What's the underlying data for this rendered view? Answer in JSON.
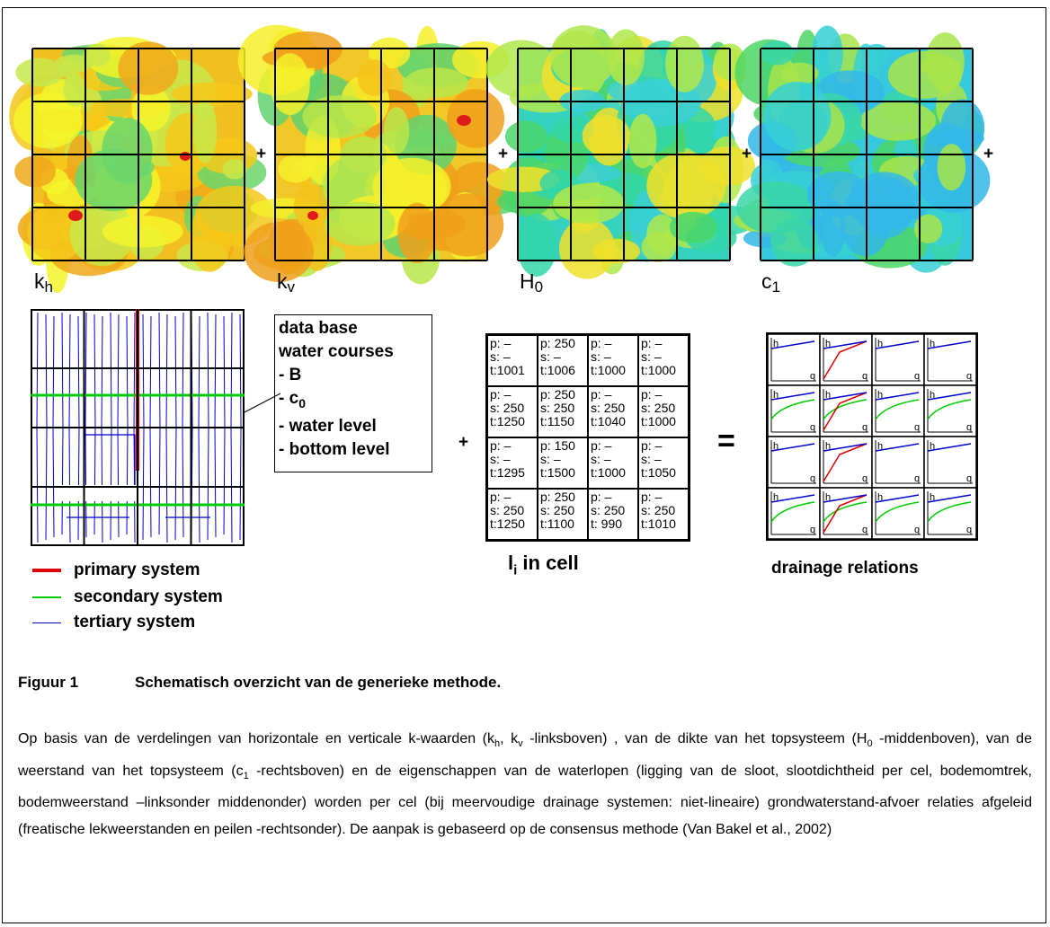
{
  "maps": [
    {
      "label": "k",
      "sub": "h",
      "plus": "+"
    },
    {
      "label": "k",
      "sub": "v",
      "plus": "+"
    },
    {
      "label": "H",
      "sub": "0",
      "plus": "+"
    },
    {
      "label": "c",
      "sub": "1",
      "plus": "+"
    }
  ],
  "database_box": {
    "lines": [
      "data base",
      "water courses",
      "- B",
      "- c",
      "- water level",
      "- bottom level"
    ],
    "c_sub": "0"
  },
  "operators": {
    "plus": "+",
    "equals": "="
  },
  "cells": [
    {
      "p": "p: –",
      "s": "s: –",
      "t": "t:1001"
    },
    {
      "p": "p: 250",
      "s": "s: –",
      "t": "t:1006"
    },
    {
      "p": "p: –",
      "s": "s: –",
      "t": "t:1000"
    },
    {
      "p": "p: –",
      "s": "s: –",
      "t": "t:1000"
    },
    {
      "p": "p: –",
      "s": "s: 250",
      "t": "t:1250"
    },
    {
      "p": "p: 250",
      "s": "s: 250",
      "t": "t:1150"
    },
    {
      "p": "p: –",
      "s": "s: 250",
      "t": "t:1040"
    },
    {
      "p": "p: –",
      "s": "s: 250",
      "t": "t:1000"
    },
    {
      "p": "p: –",
      "s": "s: –",
      "t": "t:1295"
    },
    {
      "p": "p: 150",
      "s": "s: –",
      "t": "t:1500"
    },
    {
      "p": "p: –",
      "s": "s: –",
      "t": "t:1000"
    },
    {
      "p": "p: –",
      "s": "s: –",
      "t": "t:1050"
    },
    {
      "p": "p: –",
      "s": "s: 250",
      "t": "t:1250"
    },
    {
      "p": "p: 250",
      "s": "s: 250",
      "t": "t:1100"
    },
    {
      "p": "p: –",
      "s": "s: 250",
      "t": "t: 990"
    },
    {
      "p": "p: –",
      "s": "s: 250",
      "t": "t:1010"
    }
  ],
  "cell_label": {
    "main": "l",
    "sub": "i",
    "rest": " in cell"
  },
  "drainage_label": "drainage relations",
  "drainage_axes": {
    "h": "h",
    "q": "q"
  },
  "legend": [
    {
      "label": "primary system",
      "color": "#e00000"
    },
    {
      "label": "secondary system",
      "color": "#00cc00"
    },
    {
      "label": "tertiary system",
      "color": "#0000cc"
    }
  ],
  "caption": {
    "number": "Figuur 1",
    "title": "Schematisch overzicht van de generieke methode."
  },
  "paragraph": {
    "p1": "Op basis van de verdelingen van horizontale en verticale k-waarden (k",
    "s1": "h",
    "p2": ", k",
    "s2": "v",
    "p3": "  -linksboven) , van de dikte van het topsysteem (H",
    "s3": "0",
    "p4": " -middenboven), van de weerstand van het topsysteem (c",
    "s4": "1",
    "p5": " -rechtsboven) en de eigenschappen van de waterlopen (ligging van de sloot, slootdichtheid per cel, bodemomtrek, bodemweerstand –linksonder middenonder) worden per cel (bij meervoudige drainage systemen: niet-lineaire) grondwaterstand-afvoer relaties afgeleid (freatische lekweerstanden en peilen -rechtsonder). De aanpak is gebaseerd op de consensus methode (Van Bakel et al., 2002)"
  }
}
